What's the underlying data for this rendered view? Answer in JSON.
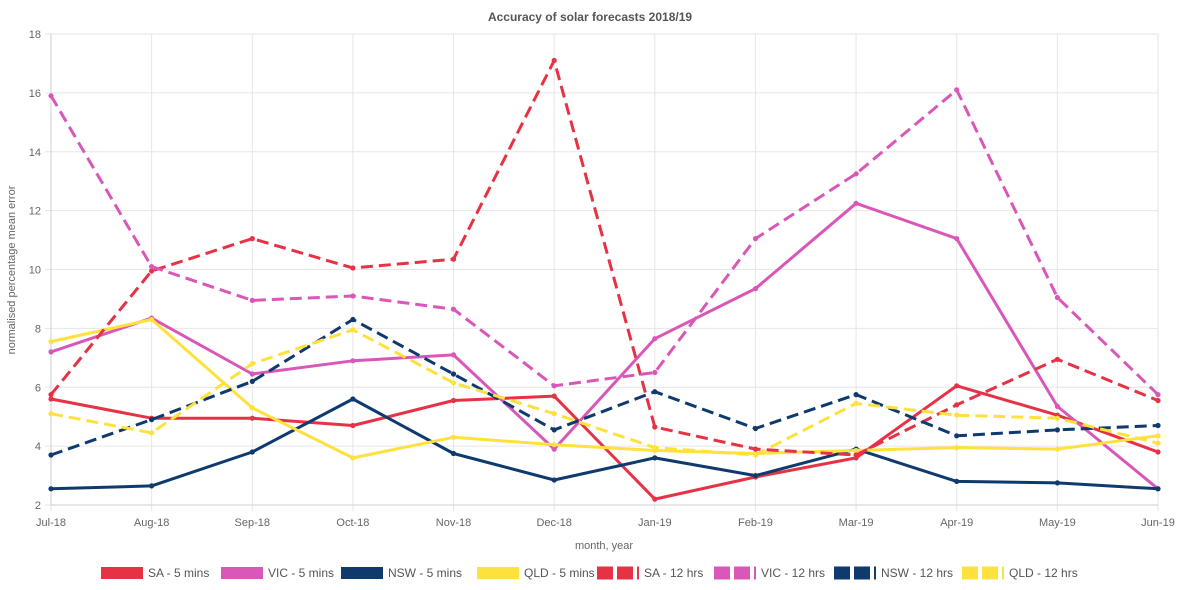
{
  "chart_data": {
    "type": "line",
    "title": "Accuracy of solar forecasts 2018/19",
    "xlabel": "month, year",
    "ylabel": "normalised percentage mean error",
    "ylim": [
      2,
      18
    ],
    "yticks": [
      2,
      4,
      6,
      8,
      10,
      12,
      14,
      16,
      18
    ],
    "grid": true,
    "legend_position": "bottom",
    "categories": [
      "Jul-18",
      "Aug-18",
      "Sep-18",
      "Oct-18",
      "Nov-18",
      "Dec-18",
      "Jan-19",
      "Feb-19",
      "Mar-19",
      "Apr-19",
      "May-19",
      "Jun-19"
    ],
    "series": [
      {
        "name": "SA - 5 mins",
        "color": "#e63244",
        "dashed": false,
        "values": [
          5.6,
          4.95,
          4.95,
          4.7,
          5.55,
          5.7,
          2.2,
          2.95,
          3.6,
          6.05,
          5.05,
          3.8
        ]
      },
      {
        "name": "VIC - 5 mins",
        "color": "#d957b8",
        "dashed": false,
        "values": [
          7.2,
          8.35,
          6.45,
          6.9,
          7.1,
          3.9,
          7.65,
          9.35,
          12.25,
          11.05,
          5.35,
          2.55
        ]
      },
      {
        "name": "NSW - 5 mins",
        "color": "#0e3a6e",
        "dashed": false,
        "values": [
          2.55,
          2.65,
          3.8,
          5.6,
          3.75,
          2.85,
          3.6,
          3.0,
          3.9,
          2.8,
          2.75,
          2.55
        ]
      },
      {
        "name": "QLD - 5 mins",
        "color": "#ffe13d",
        "dashed": false,
        "values": [
          7.55,
          8.3,
          5.3,
          3.6,
          4.3,
          4.05,
          3.85,
          3.75,
          3.85,
          3.95,
          3.9,
          4.35
        ]
      },
      {
        "name": "SA - 12 hrs",
        "color": "#e63244",
        "dashed": true,
        "values": [
          5.75,
          9.95,
          11.05,
          10.05,
          10.35,
          17.1,
          4.65,
          3.9,
          3.7,
          5.4,
          6.95,
          5.55
        ]
      },
      {
        "name": "VIC - 12 hrs",
        "color": "#d957b8",
        "dashed": true,
        "values": [
          15.9,
          10.1,
          8.95,
          9.1,
          8.65,
          6.05,
          6.5,
          11.05,
          13.25,
          16.1,
          9.05,
          5.75
        ]
      },
      {
        "name": "NSW - 12 hrs",
        "color": "#0e3a6e",
        "dashed": true,
        "values": [
          3.7,
          4.9,
          6.2,
          8.3,
          6.45,
          4.55,
          5.85,
          4.6,
          5.75,
          4.35,
          4.55,
          4.7
        ]
      },
      {
        "name": "QLD - 12 hrs",
        "color": "#ffe13d",
        "dashed": true,
        "values": [
          5.1,
          4.45,
          6.8,
          7.95,
          6.15,
          5.1,
          3.95,
          3.7,
          5.45,
          5.05,
          4.95,
          4.1
        ]
      }
    ]
  }
}
